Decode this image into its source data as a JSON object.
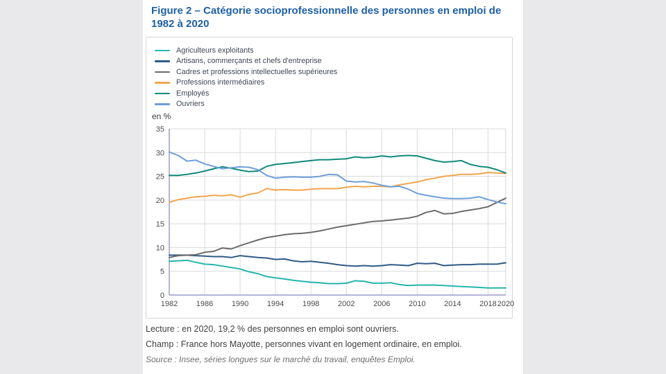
{
  "title": "Figure 2 – Catégorie socioprofessionnelle des personnes en emploi de 1982 à 2020",
  "notes": {
    "lecture": "Lecture : en 2020, 19,2 % des personnes en emploi sont ouvriers.",
    "champ": "Champ : France hors Mayotte, personnes vivant en logement ordinaire, en emploi.",
    "source": "Source : Insee, séries longues sur le marché du travail, enquêtes Emploi."
  },
  "colors": {
    "page_bg": "#e9e9eb",
    "content_bg": "#ffffff",
    "box_border": "#d4d4d4",
    "title": "#1d5fa7",
    "gridline": "#d9d9d9",
    "axis": "#9a9bca",
    "tick_text": "#4a4a4a"
  },
  "chart_data": {
    "type": "line",
    "title": "Catégorie socioprofessionnelle des personnes en emploi de 1982 à 2020",
    "ylabel": "en %",
    "xlabel": "",
    "ylim": [
      0,
      35
    ],
    "grid": true,
    "legend_position": "top-left",
    "y_ticks": [
      0,
      5,
      10,
      15,
      20,
      25,
      30,
      35
    ],
    "x_ticks": [
      1982,
      1986,
      1990,
      1994,
      1998,
      2002,
      2006,
      2010,
      2014,
      2018,
      2020
    ],
    "x": [
      1982,
      1983,
      1984,
      1985,
      1986,
      1987,
      1988,
      1989,
      1990,
      1991,
      1992,
      1993,
      1994,
      1995,
      1996,
      1997,
      1998,
      1999,
      2000,
      2001,
      2002,
      2003,
      2004,
      2005,
      2006,
      2007,
      2008,
      2009,
      2010,
      2011,
      2012,
      2013,
      2014,
      2015,
      2016,
      2017,
      2018,
      2019,
      2020
    ],
    "series": [
      {
        "name": "Agriculteurs exploitants",
        "color": "#24b5ac",
        "values": [
          7.1,
          7.2,
          7.3,
          6.9,
          6.5,
          6.4,
          6.1,
          5.8,
          5.5,
          4.9,
          4.5,
          3.9,
          3.6,
          3.4,
          3.1,
          2.9,
          2.7,
          2.6,
          2.4,
          2.4,
          2.5,
          3.0,
          2.9,
          2.5,
          2.5,
          2.6,
          2.2,
          2.0,
          2.1,
          2.1,
          2.1,
          2.0,
          1.9,
          1.8,
          1.7,
          1.6,
          1.5,
          1.5,
          1.5
        ]
      },
      {
        "name": "Artisans, commerçants et chefs d'entreprise",
        "color": "#2e5a87",
        "values": [
          8.4,
          8.4,
          8.4,
          8.3,
          8.2,
          8.1,
          8.1,
          7.9,
          8.3,
          8.1,
          7.9,
          7.8,
          7.5,
          7.6,
          7.2,
          7.0,
          7.1,
          6.9,
          6.7,
          6.4,
          6.2,
          6.1,
          6.2,
          6.1,
          6.2,
          6.4,
          6.3,
          6.2,
          6.7,
          6.6,
          6.7,
          6.2,
          6.3,
          6.4,
          6.4,
          6.5,
          6.5,
          6.5,
          6.8
        ]
      },
      {
        "name": "Cadres et professions intellectuelles supérieures",
        "color": "#6b6b6b",
        "values": [
          7.9,
          8.3,
          8.4,
          8.5,
          9.0,
          9.2,
          9.9,
          9.7,
          10.4,
          11.0,
          11.6,
          12.1,
          12.4,
          12.7,
          12.9,
          13.0,
          13.2,
          13.5,
          13.9,
          14.3,
          14.6,
          14.9,
          15.2,
          15.5,
          15.6,
          15.8,
          16.0,
          16.2,
          16.6,
          17.4,
          17.8,
          17.1,
          17.2,
          17.6,
          17.9,
          18.2,
          18.6,
          19.5,
          20.4
        ]
      },
      {
        "name": "Professions intermédiaires",
        "color": "#f4a44c",
        "values": [
          19.5,
          20.1,
          20.4,
          20.7,
          20.8,
          21.0,
          20.9,
          21.1,
          20.6,
          21.2,
          21.5,
          22.4,
          22.1,
          22.2,
          22.1,
          22.1,
          22.3,
          22.4,
          22.4,
          22.4,
          22.7,
          22.9,
          22.8,
          22.9,
          22.9,
          22.8,
          23.2,
          23.5,
          23.8,
          24.3,
          24.6,
          25.0,
          25.2,
          25.4,
          25.4,
          25.5,
          25.8,
          25.7,
          25.6
        ]
      },
      {
        "name": "Employés",
        "color": "#0f8a7c",
        "values": [
          25.2,
          25.2,
          25.4,
          25.7,
          26.1,
          26.6,
          27.0,
          26.7,
          26.3,
          26.0,
          26.1,
          27.1,
          27.5,
          27.7,
          27.9,
          28.1,
          28.3,
          28.5,
          28.5,
          28.6,
          28.7,
          29.1,
          28.9,
          29.0,
          29.3,
          29.1,
          29.3,
          29.4,
          29.3,
          28.8,
          28.3,
          28.0,
          28.1,
          28.3,
          27.5,
          27.1,
          26.9,
          26.4,
          25.7
        ]
      },
      {
        "name": "Ouvriers",
        "color": "#6e9edb",
        "values": [
          30.1,
          29.4,
          28.2,
          28.4,
          27.6,
          27.1,
          26.6,
          26.8,
          27.0,
          26.9,
          26.4,
          25.2,
          24.6,
          24.8,
          24.9,
          24.8,
          24.8,
          25.0,
          25.4,
          25.3,
          24.0,
          23.8,
          23.9,
          23.6,
          23.1,
          22.8,
          22.9,
          22.3,
          21.4,
          21.0,
          20.7,
          20.4,
          20.3,
          20.3,
          20.4,
          20.7,
          20.1,
          19.6,
          19.2
        ]
      }
    ]
  }
}
